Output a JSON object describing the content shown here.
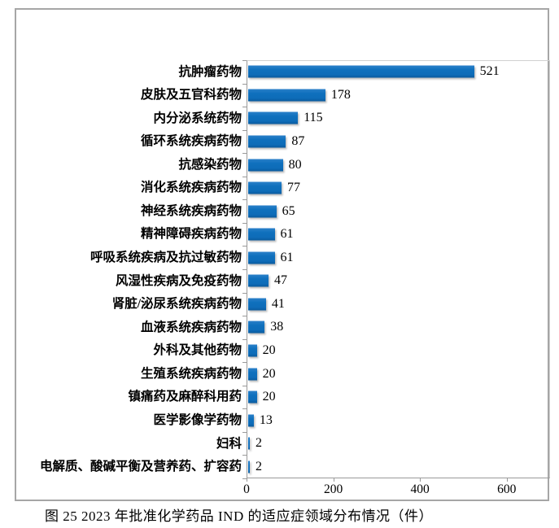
{
  "figure": {
    "caption": "图 25  2023 年批准化学药品 IND 的适应症领域分布情况（件）"
  },
  "chart_data": {
    "type": "bar",
    "orientation": "horizontal",
    "title": "",
    "xlabel": "",
    "ylabel": "",
    "categories": [
      "抗肿瘤药物",
      "皮肤及五官科药物",
      "内分泌系统药物",
      "循环系统疾病药物",
      "抗感染药物",
      "消化系统疾病药物",
      "神经系统疾病药物",
      "精神障碍疾病药物",
      "呼吸系统疾病及抗过敏药物",
      "风湿性疾病及免疫药物",
      "肾脏/泌尿系统疾病药物",
      "血液系统疾病药物",
      "外科及其他药物",
      "生殖系统疾病药物",
      "镇痛药及麻醉科用药",
      "医学影像学药物",
      "妇科",
      "电解质、酸碱平衡及营养药、扩容药"
    ],
    "values": [
      521,
      178,
      115,
      87,
      80,
      77,
      65,
      61,
      61,
      47,
      41,
      38,
      20,
      20,
      20,
      13,
      2,
      2
    ],
    "value_labels_shown": true,
    "xticks": [
      0,
      200,
      400,
      600
    ],
    "xlim": [
      0,
      700
    ],
    "grid": false,
    "legend": "none",
    "bar_color": "#0f70bd",
    "axis_color": "#9a9a9a"
  }
}
